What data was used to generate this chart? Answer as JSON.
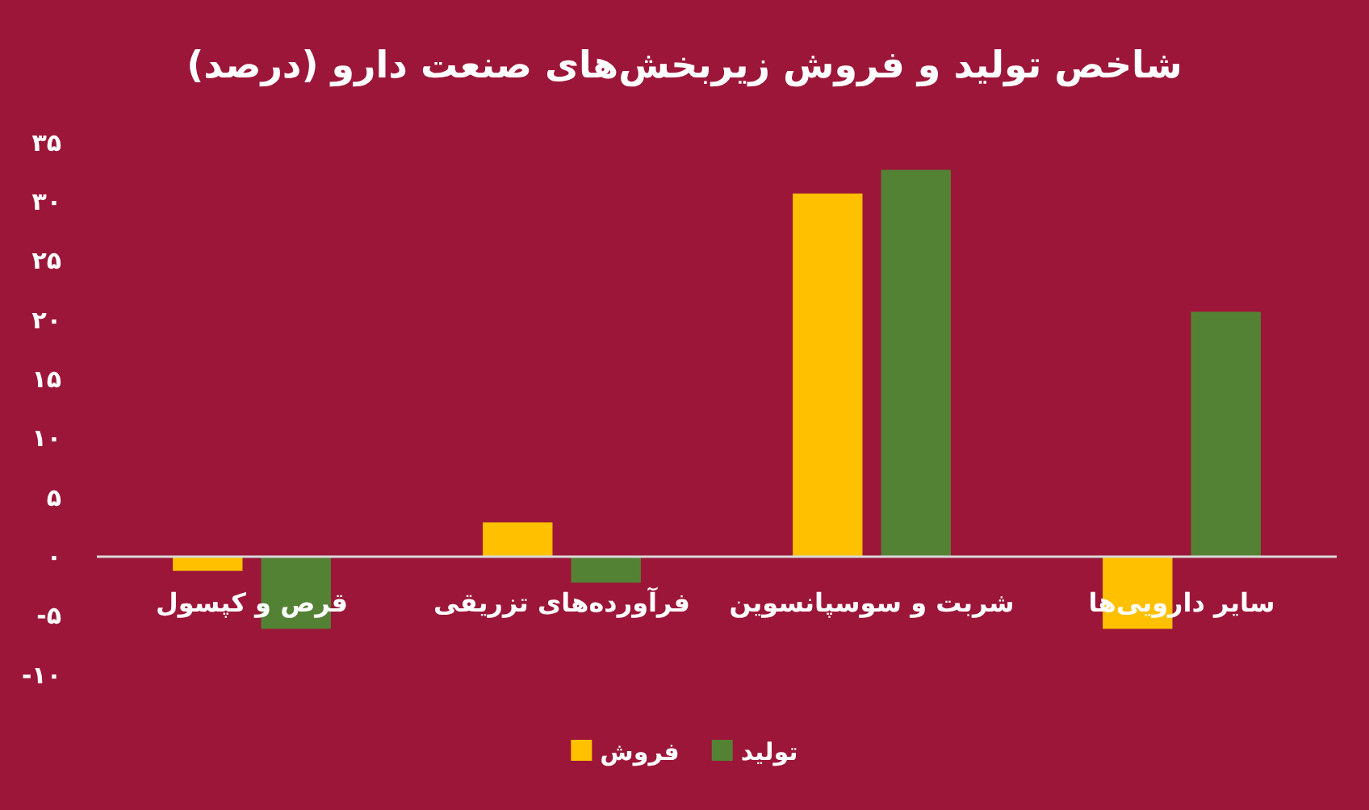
{
  "chart_data": {
    "type": "bar",
    "title": "شاخص تولید و فروش زیربخش‌های صنعت دارو (درصد)",
    "categories": [
      "قرص و کپسول",
      "فرآورده‌های تزریقی",
      "شربت و سوسپانسوین",
      "سایر دارویی‌ها"
    ],
    "series": [
      {
        "name": "فروش",
        "color": "#ffc000",
        "values": [
          -1.2,
          2.9,
          30.7,
          -6.1
        ]
      },
      {
        "name": "تولید",
        "color": "#548235",
        "values": [
          -6.1,
          -2.2,
          32.7,
          20.7
        ]
      }
    ],
    "ylim": [
      -10,
      35
    ],
    "yticks": [
      {
        "value": 35,
        "label": "۳۵"
      },
      {
        "value": 30,
        "label": "۳۰"
      },
      {
        "value": 25,
        "label": "۲۵"
      },
      {
        "value": 20,
        "label": "۲۰"
      },
      {
        "value": 15,
        "label": "۱۵"
      },
      {
        "value": 10,
        "label": "۱۰"
      },
      {
        "value": 5,
        "label": "۵"
      },
      {
        "value": 0,
        "label": "۰"
      },
      {
        "value": -5,
        "label": "-۵"
      },
      {
        "value": -10,
        "label": "-۱۰"
      }
    ],
    "legend": "bottom"
  }
}
